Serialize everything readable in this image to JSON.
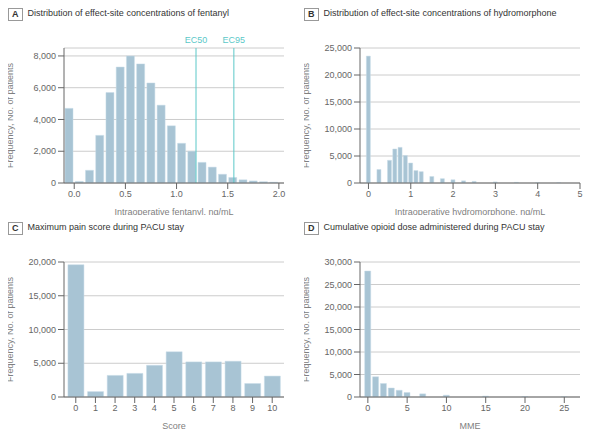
{
  "chart_data": [
    {
      "type": "bar",
      "panel_label": "A",
      "title": "Distribution of effect-site concentrations of fentanyl",
      "xlabel": "Intraoperative fentanyl, ng/mL",
      "ylabel": "Frequency, No. of patients",
      "x": [
        -0.05,
        0.05,
        0.15,
        0.25,
        0.35,
        0.45,
        0.55,
        0.65,
        0.75,
        0.85,
        0.95,
        1.05,
        1.15,
        1.25,
        1.35,
        1.45,
        1.55,
        1.65,
        1.75,
        1.85,
        1.95
      ],
      "values": [
        4700,
        100,
        800,
        3000,
        5700,
        7300,
        8000,
        7500,
        6300,
        4900,
        3600,
        2500,
        2000,
        1300,
        1000,
        550,
        350,
        200,
        130,
        80,
        50
      ],
      "xlim": [
        -0.1,
        2.05
      ],
      "ylim": [
        0,
        8500
      ],
      "xticks": [
        {
          "value": 0,
          "label": "0.0"
        },
        0.5,
        {
          "value": 1,
          "label": "1.0"
        },
        1.5,
        {
          "value": 2,
          "label": "2.0"
        }
      ],
      "yticks": [
        0,
        {
          "value": 2000,
          "label": "2,000"
        },
        {
          "value": 4000,
          "label": "4,000"
        },
        {
          "value": 6000,
          "label": "6,000"
        },
        {
          "value": 8000,
          "label": "8,000"
        }
      ],
      "annotations": [
        {
          "type": "vline",
          "x": 1.19,
          "text": "EC50",
          "color": "#5bc8c8"
        },
        {
          "type": "vline",
          "x": 1.56,
          "text": "EC95",
          "color": "#5bc8c8"
        }
      ],
      "color": "#a8c4d4",
      "edge_color": "#c8dce8",
      "grid": "y"
    },
    {
      "type": "bar",
      "panel_label": "B",
      "title": "Distribution of effect-site concentrations of hydromorphone",
      "xlabel": "Intraoperative hydromorphone, ng/mL",
      "ylabel": "Frequency, No. of patients",
      "x": [
        0.0,
        0.25,
        0.5,
        0.625,
        0.75,
        0.875,
        1.0,
        1.125,
        1.25,
        1.5,
        1.75,
        2.0,
        2.25,
        2.5,
        3.0,
        3.5,
        4.0,
        4.5
      ],
      "values": [
        23500,
        2500,
        4200,
        6300,
        6600,
        5100,
        3700,
        2300,
        2100,
        1200,
        800,
        600,
        400,
        300,
        200,
        120,
        80,
        50
      ],
      "xlim": [
        -0.2,
        5.0
      ],
      "ylim": [
        0,
        25000
      ],
      "xticks": [
        0,
        1,
        2,
        3,
        4,
        5
      ],
      "yticks": [
        0,
        {
          "value": 5000,
          "label": "5,000"
        },
        {
          "value": 10000,
          "label": "10,000"
        },
        {
          "value": 15000,
          "label": "15,000"
        },
        {
          "value": 20000,
          "label": "20,000"
        },
        {
          "value": 25000,
          "label": "25,000"
        }
      ],
      "color": "#a8c4d4",
      "edge_color": "#c8dce8",
      "grid": "y"
    },
    {
      "type": "bar",
      "panel_label": "C",
      "title": "Maximum pain score during PACU stay",
      "xlabel": "Score",
      "ylabel": "Frequency, No. of patients",
      "x": [
        0,
        1,
        2,
        3,
        4,
        5,
        6,
        7,
        8,
        9,
        10
      ],
      "values": [
        19600,
        800,
        3200,
        3500,
        4700,
        6700,
        5200,
        5200,
        5300,
        2000,
        3100
      ],
      "xlim": [
        -0.6,
        10.6
      ],
      "ylim": [
        0,
        20000
      ],
      "xticks": [
        0,
        1,
        2,
        3,
        4,
        5,
        6,
        7,
        8,
        9,
        10
      ],
      "yticks": [
        0,
        {
          "value": 5000,
          "label": "5,000"
        },
        {
          "value": 10000,
          "label": "10,000"
        },
        {
          "value": 15000,
          "label": "15,000"
        },
        {
          "value": 20000,
          "label": "20,000"
        }
      ],
      "color": "#a8c4d4",
      "edge_color": "#c8dce8",
      "grid": "y"
    },
    {
      "type": "bar",
      "panel_label": "D",
      "title": "Cumulative opioid dose administered during PACU stay",
      "xlabel": "MME",
      "ylabel": "Frequency, No. of patients",
      "x": [
        0,
        1,
        2,
        3,
        4,
        5,
        7,
        10,
        15,
        20,
        25
      ],
      "values": [
        28000,
        4500,
        3000,
        2000,
        1500,
        1000,
        700,
        400,
        200,
        100,
        50
      ],
      "xlim": [
        -1,
        27
      ],
      "ylim": [
        0,
        30000
      ],
      "xticks": [
        0,
        5,
        10,
        15,
        20,
        25
      ],
      "yticks": [
        0,
        {
          "value": 5000,
          "label": "5,000"
        },
        {
          "value": 10000,
          "label": "10,000"
        },
        {
          "value": 15000,
          "label": "15,000"
        },
        {
          "value": 20000,
          "label": "20,000"
        },
        {
          "value": 25000,
          "label": "25,000"
        },
        {
          "value": 30000,
          "label": "30,000"
        }
      ],
      "color": "#a8c4d4",
      "edge_color": "#c8dce8",
      "grid": "y"
    }
  ]
}
